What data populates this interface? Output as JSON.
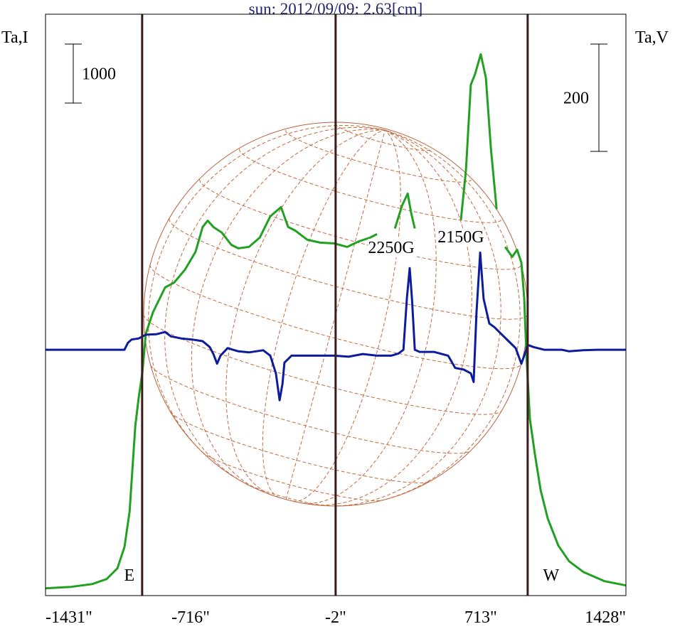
{
  "chart_data": {
    "type": "line",
    "title": "sun: 2012/09/09: 2.63[cm]",
    "ylabel": "Ta,I",
    "y2label": "Ta,V",
    "xlim": [
      -1431,
      1428
    ],
    "xticks": [
      {
        "value": -1431,
        "label": "-1431\""
      },
      {
        "value": -716,
        "label": "-716\""
      },
      {
        "value": -2,
        "label": "-2\""
      },
      {
        "value": 713,
        "label": "713\""
      },
      {
        "value": 1428,
        "label": "1428\""
      }
    ],
    "ylim": [
      -100,
      9750
    ],
    "y2lim": [
      -458,
      625
    ],
    "scale_bars": [
      {
        "value": 1000,
        "axis": "y"
      },
      {
        "value": 200,
        "axis": "y2"
      }
    ],
    "limb_lines": {
      "x": [
        -955,
        -2,
        944
      ],
      "color": "#3a1c1c",
      "labels": [
        "E",
        null,
        "W"
      ]
    },
    "annotations": [
      {
        "text": "2250G",
        "x": 272,
        "y": 5800
      },
      {
        "text": "2150G",
        "x": 615,
        "y": 5980
      }
    ],
    "series": [
      {
        "axis": "y",
        "color": "#22a022",
        "x": [
          -1431,
          -1305,
          -1200,
          -1130,
          -1077,
          -1042,
          -1017,
          -1003,
          -989,
          -972,
          -954,
          -937,
          -902,
          -842,
          -797,
          -744,
          -692,
          -657,
          -632,
          -604,
          -562,
          -516,
          -481,
          -429,
          -376,
          -324,
          -271,
          -236,
          -201,
          -141,
          -78,
          -8,
          55,
          114,
          167,
          202,
          246,
          290,
          325,
          353,
          370,
          388,
          450,
          517,
          559,
          590,
          615,
          640,
          664,
          685,
          713,
          738,
          763,
          791,
          812,
          833,
          868,
          892,
          913,
          927,
          938,
          955,
          980,
          1008,
          1043,
          1095,
          1148,
          1218,
          1323,
          1428
        ],
        "values": [
          24,
          48,
          96,
          181,
          361,
          723,
          1325,
          2048,
          2771,
          3253,
          3675,
          4337,
          4699,
          5120,
          5205,
          5422,
          5723,
          6145,
          6253,
          6145,
          6048,
          5843,
          5783,
          5807,
          5964,
          6325,
          6482,
          6145,
          6084,
          5928,
          5880,
          5867,
          5807,
          5904,
          5964,
          6024,
          null,
          6120,
          6506,
          6711,
          6386,
          6120,
          null,
          5843,
          5964,
          null,
          6265,
          7108,
          8554,
          8735,
          9072,
          8675,
          7470,
          6446,
          null,
          5807,
          5639,
          5759,
          5542,
          4940,
          3976,
          2892,
          2289,
          1687,
          1205,
          747,
          482,
          301,
          145,
          72
        ]
      },
      {
        "axis": "y2",
        "color": "#0c1c9c",
        "x": [
          -1431,
          -1042,
          -1025,
          -1007,
          -972,
          -937,
          -884,
          -842,
          -814,
          -762,
          -709,
          -657,
          -622,
          -604,
          -586,
          -569,
          -534,
          -481,
          -429,
          -359,
          -324,
          -296,
          -278,
          -264,
          -254,
          -219,
          -149,
          -78,
          -8,
          62,
          132,
          202,
          272,
          307,
          332,
          349,
          363,
          374,
          388,
          412,
          482,
          552,
          587,
          629,
          664,
          678,
          692,
          710,
          727,
          755,
          780,
          815,
          850,
          885,
          913,
          927,
          945,
          973,
          1025,
          1113,
          1148,
          1218,
          1288,
          1428
        ],
        "values": [
          0,
          0,
          13,
          19,
          21,
          28,
          29,
          33,
          25,
          21,
          19,
          16,
          5,
          -8,
          -26,
          -11,
          3,
          -3,
          -5,
          -1,
          -11,
          -44,
          -94,
          -64,
          -24,
          -11,
          -11,
          -11,
          -11,
          -13,
          -8,
          -11,
          -11,
          -7,
          0,
          95,
          152,
          95,
          0,
          -4,
          -4,
          -11,
          -34,
          -37,
          -44,
          -60,
          69,
          181,
          95,
          49,
          42,
          29,
          16,
          3,
          -26,
          -11,
          9,
          5,
          0,
          0,
          -3,
          -1,
          0,
          0
        ]
      }
    ]
  }
}
